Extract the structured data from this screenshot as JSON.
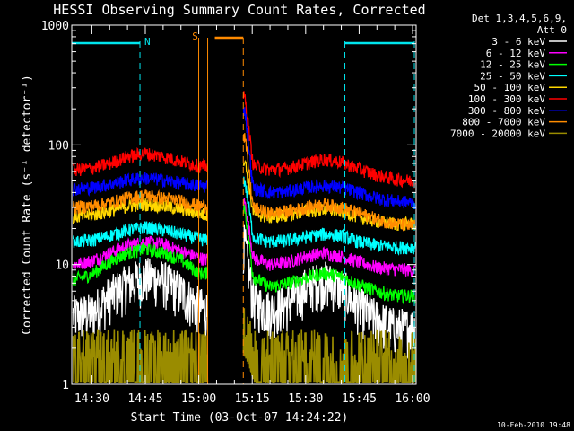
{
  "colors": {
    "background": "#000000",
    "axes": "#ffffff",
    "night_marker": "#00e5ee",
    "saa_marker": "#ff8a00"
  },
  "chart_data": {
    "type": "line",
    "title": "HESSI Observing Summary Count Rates, Corrected",
    "xlabel": "Start Time (03-Oct-07 14:24:22)",
    "ylabel": "Corrected Count Rate (s⁻¹ detector⁻¹)",
    "y_scale": "log",
    "ylim": [
      1,
      1000
    ],
    "xlim": [
      "14:24:22",
      "16:01:00"
    ],
    "x_tick_labels": [
      "14:30",
      "14:45",
      "15:00",
      "15:15",
      "15:30",
      "15:45",
      "16:00"
    ],
    "y_tick_labels": [
      "1",
      "10",
      "100",
      "1000"
    ],
    "legend_title": [
      "Det 1,3,4,5,6,9,",
      "Att 0"
    ],
    "legend_position": "right",
    "timestamp": "10-Feb-2010 19:48",
    "annotations": {
      "night_label": "N",
      "saa_label": "S",
      "night_intervals": [
        [
          "14:24:22",
          "14:43:30"
        ],
        [
          "15:41:00",
          "16:00:30"
        ]
      ],
      "saa_interval": [
        "15:02:30",
        "15:12:30"
      ],
      "data_gap": [
        "15:02:30",
        "15:12:30"
      ]
    },
    "x": [
      "14:25",
      "14:30",
      "14:35",
      "14:40",
      "14:45",
      "14:50",
      "14:55",
      "15:00",
      "15:02",
      "15:13",
      "15:15",
      "15:20",
      "15:25",
      "15:30",
      "15:35",
      "15:40",
      "15:45",
      "15:50",
      "15:55",
      "16:00"
    ],
    "series": [
      {
        "name": "3 - 6 keV",
        "color": "#ffffff",
        "values": [
          3.8,
          4,
          5.5,
          7,
          8,
          7.5,
          6,
          4.5,
          4.2,
          9,
          5,
          4.2,
          4.8,
          6.5,
          7.5,
          6.5,
          4.5,
          3.5,
          3,
          3
        ]
      },
      {
        "name": "6 - 12 keV",
        "color": "#ff00ff",
        "values": [
          10,
          10.8,
          12.5,
          14.5,
          15.5,
          14.8,
          13,
          11.5,
          11,
          20,
          11.5,
          10,
          10.5,
          11.8,
          12.5,
          11.8,
          10.5,
          9.5,
          9.2,
          9
        ]
      },
      {
        "name": "12 - 25 keV",
        "color": "#00ff00",
        "values": [
          7.5,
          8.3,
          10.5,
          12.5,
          13.5,
          12.5,
          11,
          8.5,
          8.5,
          18,
          8,
          6.5,
          7,
          7.8,
          8.5,
          8,
          6.8,
          6,
          5.5,
          5.5
        ]
      },
      {
        "name": "25 - 50 keV",
        "color": "#00ffff",
        "values": [
          15.5,
          16,
          17.5,
          19.5,
          20.5,
          19.5,
          18,
          16.5,
          16,
          30,
          17,
          15.5,
          16,
          17,
          18,
          17.5,
          15.5,
          14.5,
          14,
          14
        ]
      },
      {
        "name": "50 - 100 keV",
        "color": "#ffd700",
        "values": [
          25,
          26,
          28,
          31,
          32,
          31,
          29,
          27,
          26,
          45,
          27,
          25,
          26,
          28,
          29,
          28,
          25,
          23,
          22,
          22
        ]
      },
      {
        "name": "100 - 300 keV",
        "color": "#ff0000",
        "values": [
          62,
          64,
          70,
          80,
          85,
          80,
          73,
          67,
          66,
          150,
          68,
          62,
          64,
          70,
          76,
          72,
          63,
          56,
          52,
          50
        ]
      },
      {
        "name": "300 - 800 keV",
        "color": "#0000ff",
        "values": [
          43,
          44,
          47,
          51,
          53,
          51,
          48,
          46,
          45,
          120,
          44,
          40,
          41,
          44,
          46,
          44,
          40,
          36,
          34,
          33
        ]
      },
      {
        "name": "800 - 7000 keV",
        "color": "#ff8c00",
        "values": [
          30,
          31,
          33,
          36,
          38,
          36,
          34,
          31,
          31,
          70,
          30,
          27,
          28,
          30,
          32,
          30,
          27,
          24,
          22,
          21
        ]
      },
      {
        "name": "7000 - 20000 keV",
        "color": "#9a8c00",
        "values": [
          1.8,
          2,
          2.2,
          2.5,
          2.5,
          2.3,
          2,
          1.7,
          1.7,
          2,
          1.5,
          1.4,
          1.8,
          2.2,
          2.3,
          2.1,
          1.8,
          1.5,
          1.3,
          1.3
        ]
      }
    ]
  }
}
